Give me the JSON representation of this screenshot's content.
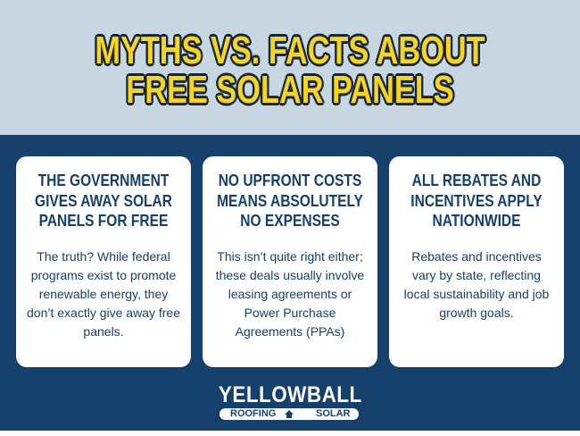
{
  "header": {
    "title_lines": [
      "MYTHS VS. FACTS ABOUT",
      "FREE SOLAR PANELS"
    ]
  },
  "cards": [
    {
      "heading": "THE GOVERNMENT GIVES AWAY SOLAR PANELS FOR FREE",
      "body": "The truth? While federal programs exist to promote renewable energy, they don’t exactly give away free panels."
    },
    {
      "heading": "NO UPFRONT COSTS MEANS ABSOLUTELY NO EXPENSES",
      "body": "This isn’t quite right either; these deals usually involve leasing agreements or Power Purchase Agreements (PPAs)"
    },
    {
      "heading": "ALL REBATES AND INCENTIVES APPLY NATIONWIDE",
      "body": "Rebates and incentives vary by state, reflecting local sustainability and job growth goals."
    }
  ],
  "logo": {
    "name": "YELLOWBALL",
    "left": "ROOFING",
    "right": "SOLAR"
  }
}
